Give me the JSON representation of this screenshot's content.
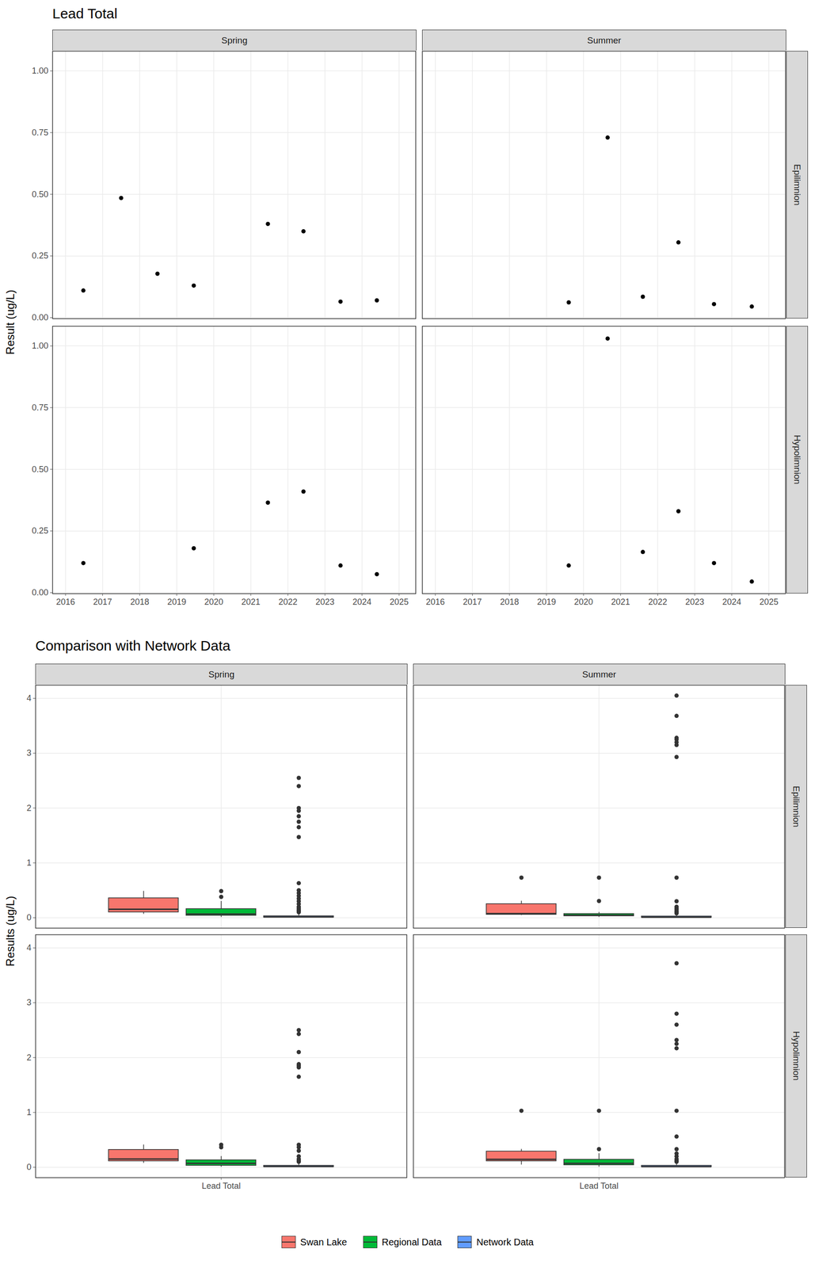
{
  "chart_data": [
    {
      "type": "scatter",
      "title": "Lead Total",
      "y_label": "Result (ug/L)",
      "columns": [
        "Spring",
        "Summer"
      ],
      "rows": [
        "Epilimnion",
        "Hypolimnion"
      ],
      "color": "#000000",
      "grid": true,
      "xlim": [
        2015.65,
        2025.45
      ],
      "xticks": [
        2016,
        2017,
        2018,
        2019,
        2020,
        2021,
        2022,
        2023,
        2024,
        2025
      ],
      "ylim": [
        -0.004,
        1.08
      ],
      "yticks": [
        {
          "value": 0,
          "label": "0.00"
        },
        0.25,
        {
          "value": 0.5,
          "label": "0.50"
        },
        0.75,
        {
          "value": 1,
          "label": "1.00"
        }
      ],
      "panels": [
        {
          "column": "Spring",
          "row": "Epilimnion",
          "x": [
            2016.48,
            2017.5,
            2018.48,
            2019.46,
            2021.46,
            2022.42,
            2023.42,
            2024.4
          ],
          "values": [
            0.11,
            0.485,
            0.178,
            0.13,
            0.38,
            0.35,
            0.065,
            0.07
          ]
        },
        {
          "column": "Summer",
          "row": "Epilimnion",
          "x": [
            2019.6,
            2020.65,
            2021.6,
            2022.56,
            2023.52,
            2024.54
          ],
          "values": [
            0.062,
            0.73,
            0.085,
            0.305,
            0.055,
            0.045
          ]
        },
        {
          "column": "Spring",
          "row": "Hypolimnion",
          "x": [
            2016.48,
            2019.46,
            2021.46,
            2022.42,
            2023.42,
            2024.4
          ],
          "values": [
            0.12,
            0.18,
            0.365,
            0.41,
            0.11,
            0.075
          ]
        },
        {
          "column": "Summer",
          "row": "Hypolimnion",
          "x": [
            2019.6,
            2020.65,
            2021.6,
            2022.56,
            2023.52,
            2024.54
          ],
          "values": [
            0.11,
            1.03,
            0.165,
            0.33,
            0.12,
            0.045
          ]
        }
      ]
    },
    {
      "type": "box",
      "title": "Comparison with Network Data",
      "y_label": "Results (ug/L)",
      "categories": [
        "Lead Total"
      ],
      "columns": [
        "Spring",
        "Summer"
      ],
      "rows": [
        "Epilimnion",
        "Hypolimnion"
      ],
      "grid": true,
      "legend": "bottom",
      "ylim": [
        -0.19,
        4.24
      ],
      "yticks": [
        0,
        1,
        2,
        3,
        4
      ],
      "series": [
        {
          "name": "Swan Lake",
          "color": "#F8766D"
        },
        {
          "name": "Regional Data",
          "color": "#00BA38"
        },
        {
          "name": "Network Data",
          "color": "#619CFF"
        }
      ],
      "panels": [
        {
          "column": "Spring",
          "row": "Epilimnion",
          "boxes": [
            {
              "whisker_low": 0.065,
              "q1": 0.1,
              "median": 0.154,
              "q3": 0.3575,
              "whisker_high": 0.485,
              "outliers": []
            },
            {
              "whisker_low": 0.01,
              "q1": 0.04,
              "median": 0.065,
              "q3": 0.16,
              "whisker_high": 0.3,
              "outliers": [
                0.485,
                0.38
              ]
            },
            {
              "whisker_low": 0,
              "q1": 0.005,
              "median": 0.015,
              "q3": 0.03,
              "whisker_high": 0.07,
              "outliers": [
                2.55,
                2.4,
                2.0,
                1.95,
                1.85,
                1.75,
                1.65,
                1.47,
                0.63,
                0.5,
                0.45,
                0.4,
                0.35,
                0.3,
                0.25,
                0.2,
                0.17,
                0.14,
                0.12,
                0.1
              ]
            }
          ]
        },
        {
          "column": "Summer",
          "row": "Epilimnion",
          "boxes": [
            {
              "whisker_low": 0.045,
              "q1": 0.057,
              "median": 0.0735,
              "q3": 0.25,
              "whisker_high": 0.305,
              "outliers": [
                0.73
              ]
            },
            {
              "whisker_low": 0.01,
              "q1": 0.03,
              "median": 0.045,
              "q3": 0.07,
              "whisker_high": 0.1,
              "outliers": [
                0.73,
                0.305
              ]
            },
            {
              "whisker_low": 0,
              "q1": 0.003,
              "median": 0.01,
              "q3": 0.025,
              "whisker_high": 0.06,
              "outliers": [
                4.05,
                3.68,
                3.28,
                3.25,
                3.2,
                3.15,
                2.93,
                0.73,
                0.3,
                0.2,
                0.17,
                0.15,
                0.12,
                0.1,
                0.08
              ]
            }
          ]
        },
        {
          "column": "Spring",
          "row": "Hypolimnion",
          "boxes": [
            {
              "whisker_low": 0.075,
              "q1": 0.1125,
              "median": 0.15,
              "q3": 0.319,
              "whisker_high": 0.41,
              "outliers": []
            },
            {
              "whisker_low": 0.005,
              "q1": 0.03,
              "median": 0.07,
              "q3": 0.13,
              "whisker_high": 0.2,
              "outliers": [
                0.41,
                0.365
              ]
            },
            {
              "whisker_low": 0,
              "q1": 0.005,
              "median": 0.015,
              "q3": 0.03,
              "whisker_high": 0.07,
              "outliers": [
                2.5,
                2.43,
                2.1,
                1.88,
                1.85,
                1.82,
                1.65,
                0.41,
                0.365,
                0.3,
                0.2,
                0.15,
                0.12,
                0.1
              ]
            }
          ]
        },
        {
          "column": "Summer",
          "row": "Hypolimnion",
          "boxes": [
            {
              "whisker_low": 0.045,
              "q1": 0.1125,
              "median": 0.1425,
              "q3": 0.289,
              "whisker_high": 0.33,
              "outliers": [
                1.03
              ]
            },
            {
              "whisker_low": 0.005,
              "q1": 0.04,
              "median": 0.07,
              "q3": 0.14,
              "whisker_high": 0.25,
              "outliers": [
                1.03,
                0.33
              ]
            },
            {
              "whisker_low": 0,
              "q1": 0.005,
              "median": 0.012,
              "q3": 0.03,
              "whisker_high": 0.07,
              "outliers": [
                3.72,
                2.8,
                2.6,
                2.32,
                2.25,
                2.17,
                1.03,
                0.56,
                0.33,
                0.25,
                0.2,
                0.15,
                0.12,
                0.1
              ]
            }
          ]
        }
      ]
    }
  ]
}
